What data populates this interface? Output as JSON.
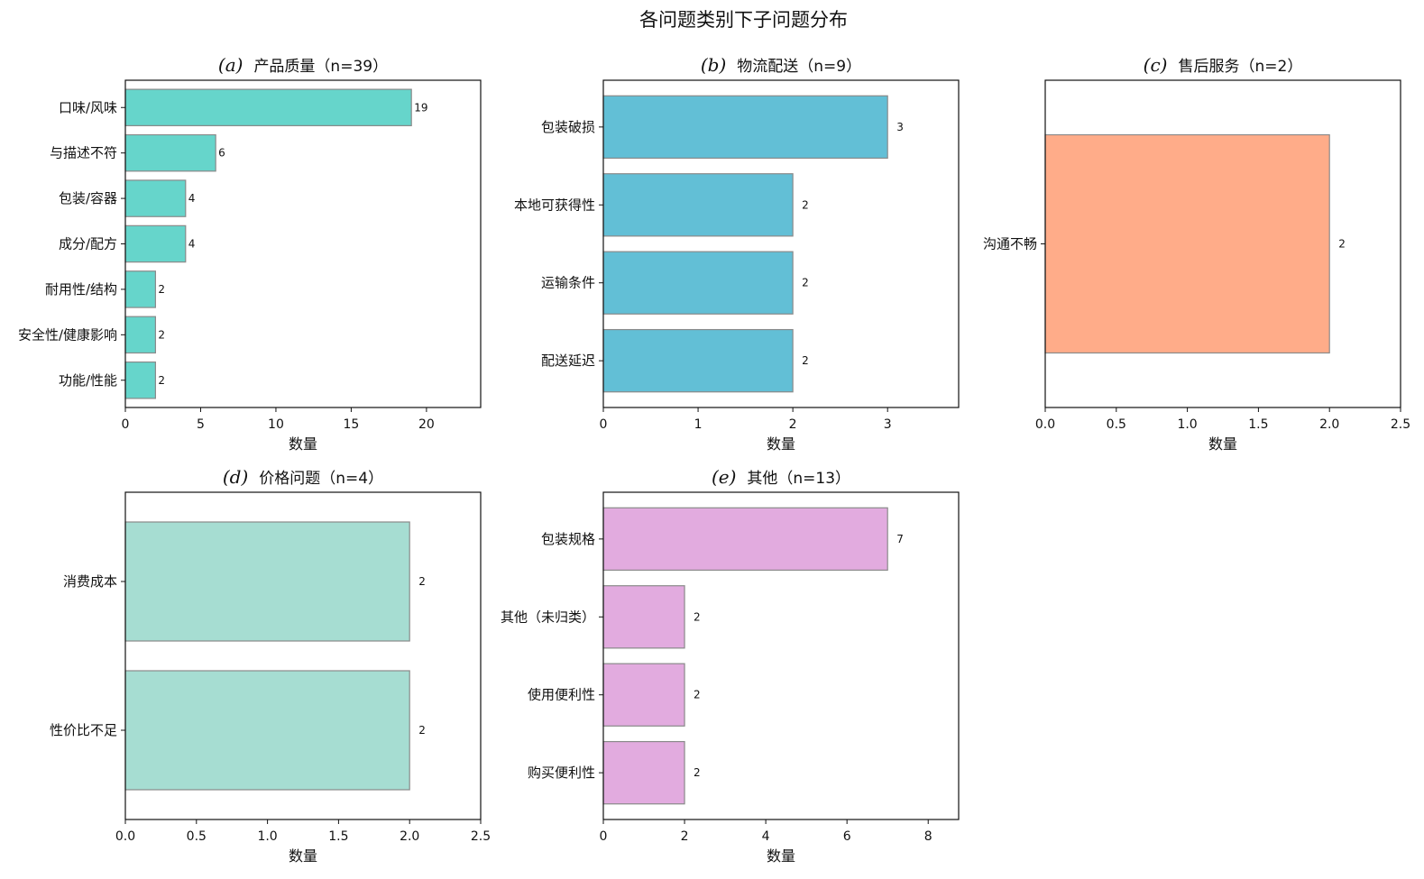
{
  "figure_title": "各问题类别下子问题分布",
  "chart_data": [
    {
      "type": "bar",
      "orientation": "horizontal",
      "title_prefix": "(a)",
      "title": "产品质量（n=39）",
      "xlabel": "数量",
      "color": "#66D5CB",
      "categories": [
        "口味/风味",
        "与描述不符",
        "包装/容器",
        "成分/配方",
        "耐用性/结构",
        "安全性/健康影响",
        "功能/性能"
      ],
      "values": [
        19,
        6,
        4,
        4,
        2,
        2,
        2
      ],
      "data_labels": [
        "19",
        "6",
        "4",
        "4",
        "2",
        "2",
        "2"
      ],
      "xlim": [
        0,
        23.6
      ],
      "xticks": [
        "0",
        "5",
        "10",
        "15",
        "20"
      ]
    },
    {
      "type": "bar",
      "orientation": "horizontal",
      "title_prefix": "(b)",
      "title": "物流配送（n=9）",
      "xlabel": "数量",
      "color": "#62BFD6",
      "categories": [
        "包装破损",
        "本地可获得性",
        "运输条件",
        "配送延迟"
      ],
      "values": [
        3,
        2,
        2,
        2
      ],
      "data_labels": [
        "3",
        "2",
        "2",
        "2"
      ],
      "xlim": [
        0,
        3.75
      ],
      "xticks": [
        "0",
        "1",
        "2",
        "3"
      ]
    },
    {
      "type": "bar",
      "orientation": "horizontal",
      "title_prefix": "(c)",
      "title": "售后服务（n=2）",
      "xlabel": "数量",
      "color": "#FFAC89",
      "categories": [
        "沟通不畅"
      ],
      "values": [
        2
      ],
      "data_labels": [
        "2"
      ],
      "xlim": [
        0,
        2.5
      ],
      "xticks": [
        "0.0",
        "0.5",
        "1.0",
        "1.5",
        "2.0",
        "2.5"
      ]
    },
    {
      "type": "bar",
      "orientation": "horizontal",
      "title_prefix": "(d)",
      "title": "价格问题（n=4）",
      "xlabel": "数量",
      "color": "#A6DDD2",
      "categories": [
        "消费成本",
        "性价比不足"
      ],
      "values": [
        2,
        2
      ],
      "data_labels": [
        "2",
        "2"
      ],
      "xlim": [
        0,
        2.5
      ],
      "xticks": [
        "0.0",
        "0.5",
        "1.0",
        "1.5",
        "2.0",
        "2.5"
      ]
    },
    {
      "type": "bar",
      "orientation": "horizontal",
      "title_prefix": "(e)",
      "title": "其他（n=13）",
      "xlabel": "数量",
      "color": "#E2ABDF",
      "categories": [
        "包装规格",
        "其他（未归类）",
        "使用便利性",
        "购买便利性"
      ],
      "values": [
        7,
        2,
        2,
        2
      ],
      "data_labels": [
        "7",
        "2",
        "2",
        "2"
      ],
      "xlim": [
        0,
        8.75
      ],
      "xticks": [
        "0",
        "2",
        "4",
        "6",
        "8"
      ]
    }
  ]
}
